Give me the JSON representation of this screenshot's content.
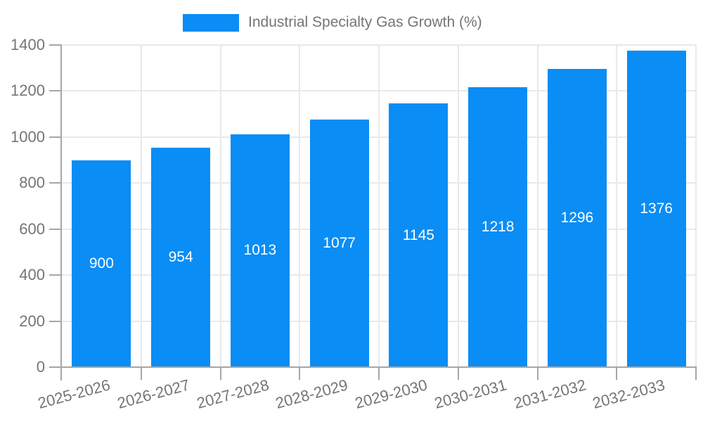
{
  "legend": {
    "position": "top",
    "items": [
      {
        "label": "Industrial Specialty Gas Growth (%)",
        "color": "#0a8df5"
      }
    ]
  },
  "chart_data": {
    "type": "bar",
    "title": "Industrial Specialty Gas Growth (%)",
    "categories": [
      "2025-2026",
      "2026-2027",
      "2027-2028",
      "2028-2029",
      "2029-2030",
      "2030-2031",
      "2031-2032",
      "2032-2033"
    ],
    "values": [
      900,
      954,
      1013,
      1077,
      1145,
      1218,
      1296,
      1376
    ],
    "bar_value_labels": [
      "900",
      "954",
      "1013",
      "1077",
      "1145",
      "1218",
      "1296",
      "1376"
    ],
    "xlabel": "",
    "ylabel": "",
    "ylim": [
      0,
      1400
    ],
    "yticks": [
      0,
      200,
      400,
      600,
      800,
      1000,
      1200,
      1400
    ],
    "grid": true,
    "legend_position": "top",
    "bar_color": "#0a8df5",
    "bar_label_color": "#ffffff",
    "grid_color": "#e9e9e9",
    "axis_color": "#a6a6a6",
    "tick_label_color": "#757575",
    "x_label_rotation_deg": -15
  }
}
